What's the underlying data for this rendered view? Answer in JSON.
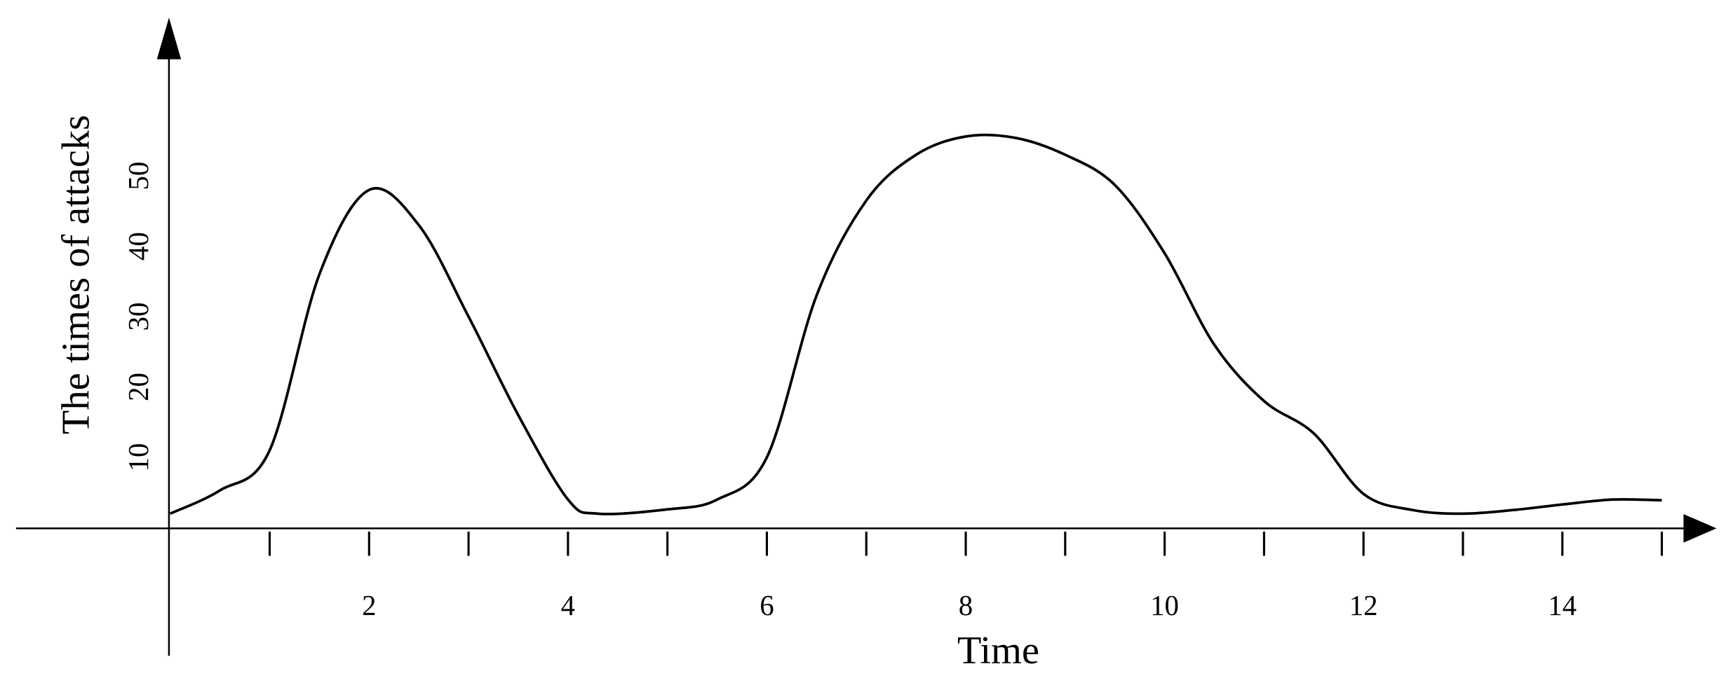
{
  "chart_data": {
    "type": "line",
    "x_label": "Time",
    "y_label": "The times of attacks",
    "x": [
      0,
      0.5,
      1,
      1.5,
      2,
      2.5,
      3,
      3.5,
      4,
      4.3,
      5,
      5.5,
      6,
      6.5,
      7,
      7.5,
      8,
      8.5,
      9,
      9.5,
      10,
      10.5,
      11,
      11.5,
      12,
      12.5,
      13,
      13.5,
      14,
      14.5,
      15
    ],
    "series": [
      {
        "color": "#000000",
        "values": [
          2,
          5.3,
          11,
          36,
          48,
          43,
          30,
          16,
          4,
          2,
          2.6,
          4,
          10,
          33,
          46.5,
          53,
          55.6,
          55.4,
          53,
          48.7,
          39,
          26,
          18,
          13.4,
          4.8,
          2.5,
          2,
          2.5,
          3.3,
          4,
          3.9
        ]
      }
    ],
    "xlim": [
      -1.55,
      15.55
    ],
    "ylim": [
      -18.2,
      72.5
    ],
    "xticks": [
      2,
      4,
      6,
      8,
      10,
      12,
      14
    ],
    "minor_xticks": [
      1,
      2,
      3,
      4,
      5,
      6,
      7,
      8,
      9,
      10,
      11,
      12,
      13,
      14,
      15
    ],
    "yticks": [
      10,
      20,
      30,
      40,
      50
    ]
  }
}
